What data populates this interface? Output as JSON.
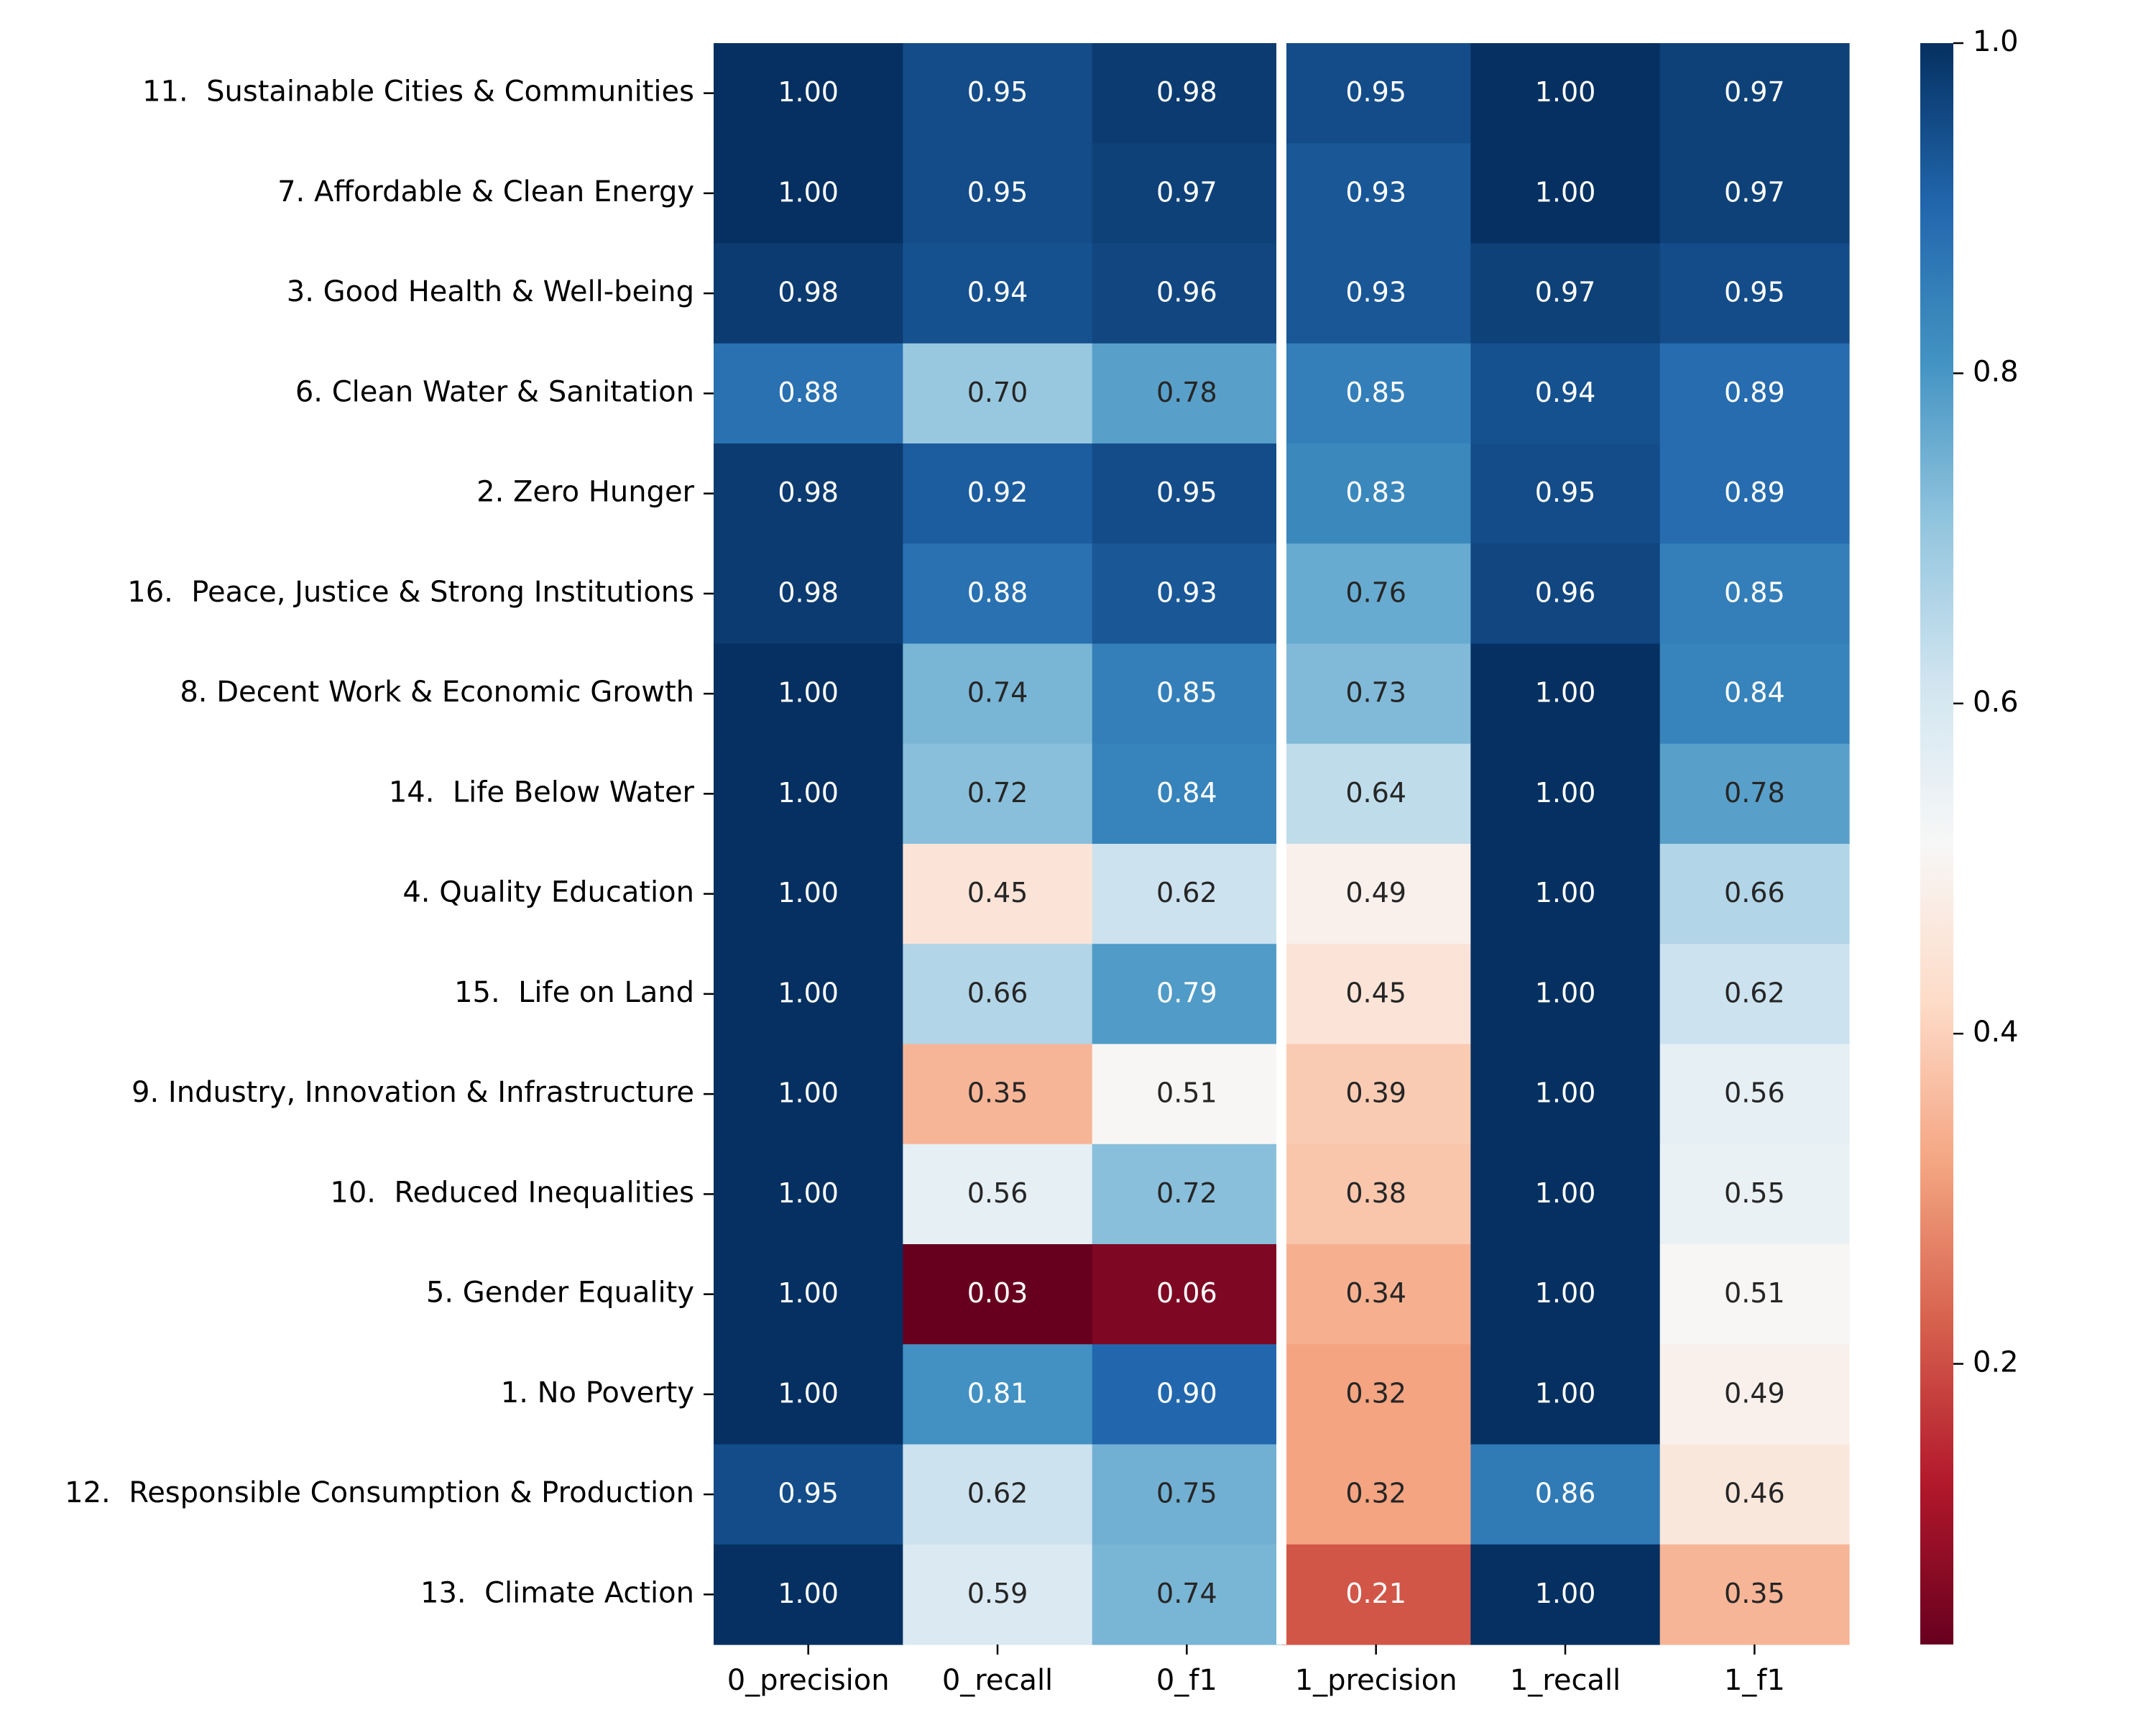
{
  "chart_data": {
    "type": "heatmap",
    "title": "",
    "xlabel": "",
    "ylabel": "",
    "columns": [
      "0_precision",
      "0_recall",
      "0_f1",
      "1_precision",
      "1_recall",
      "1_f1"
    ],
    "rows": [
      "11.  Sustainable Cities & Communities",
      "7. Affordable & Clean Energy",
      "3. Good Health & Well-being",
      "6. Clean Water & Sanitation",
      "2. Zero Hunger",
      "16.  Peace, Justice & Strong Institutions",
      "8. Decent Work & Economic Growth",
      "14.  Life Below Water",
      "4. Quality Education",
      "15.  Life on Land",
      "9. Industry, Innovation & Infrastructure",
      "10.  Reduced Inequalities",
      "5. Gender Equality",
      "1. No Poverty",
      "12.  Responsible Consumption & Production",
      "13.  Climate Action"
    ],
    "values": [
      [
        1.0,
        0.95,
        0.98,
        0.95,
        1.0,
        0.97
      ],
      [
        1.0,
        0.95,
        0.97,
        0.93,
        1.0,
        0.97
      ],
      [
        0.98,
        0.94,
        0.96,
        0.93,
        0.97,
        0.95
      ],
      [
        0.88,
        0.7,
        0.78,
        0.85,
        0.94,
        0.89
      ],
      [
        0.98,
        0.92,
        0.95,
        0.83,
        0.95,
        0.89
      ],
      [
        0.98,
        0.88,
        0.93,
        0.76,
        0.96,
        0.85
      ],
      [
        1.0,
        0.74,
        0.85,
        0.73,
        1.0,
        0.84
      ],
      [
        1.0,
        0.72,
        0.84,
        0.64,
        1.0,
        0.78
      ],
      [
        1.0,
        0.45,
        0.62,
        0.49,
        1.0,
        0.66
      ],
      [
        1.0,
        0.66,
        0.79,
        0.45,
        1.0,
        0.62
      ],
      [
        1.0,
        0.35,
        0.51,
        0.39,
        1.0,
        0.56
      ],
      [
        1.0,
        0.56,
        0.72,
        0.38,
        1.0,
        0.55
      ],
      [
        1.0,
        0.03,
        0.06,
        0.34,
        1.0,
        0.51
      ],
      [
        1.0,
        0.81,
        0.9,
        0.32,
        1.0,
        0.49
      ],
      [
        0.95,
        0.62,
        0.75,
        0.32,
        0.86,
        0.46
      ],
      [
        1.0,
        0.59,
        0.74,
        0.21,
        1.0,
        0.35
      ]
    ],
    "value_format": "2 decimals",
    "colormap": "RdBu",
    "color_range": [
      0.03,
      1.0
    ],
    "colorbar_ticks": [
      "0.2",
      "0.4",
      "0.6",
      "0.8",
      "1.0"
    ],
    "column_group_separator_after": "0_f1"
  }
}
